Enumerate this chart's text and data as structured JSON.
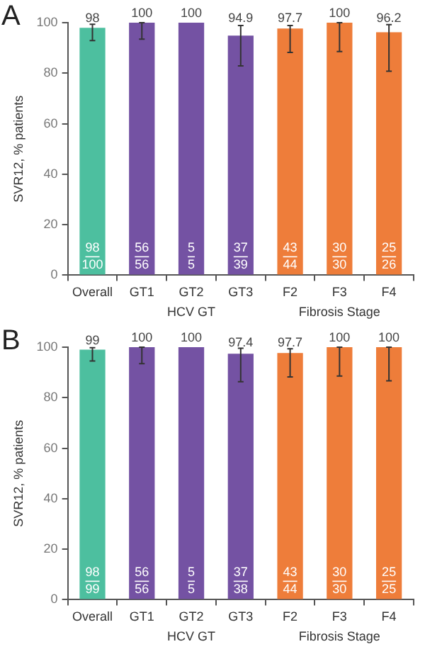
{
  "chart_data": [
    {
      "type": "bar",
      "title": "A",
      "ylabel": "SVR12, % patients",
      "categories": [
        "Overall",
        "GT1",
        "GT2",
        "GT3",
        "F2",
        "F3",
        "F4"
      ],
      "values": [
        98,
        100,
        100,
        94.9,
        97.7,
        100,
        96.2
      ],
      "colors": [
        "#4dbf9f",
        "#7452a3",
        "#7452a3",
        "#7452a3",
        "#ee7d3a",
        "#ee7d3a",
        "#ee7d3a"
      ],
      "errors": [
        [
          92.9,
          99.4
        ],
        [
          93.5,
          100
        ],
        null,
        [
          82.9,
          98.9
        ],
        [
          88.2,
          98.9
        ],
        [
          88.6,
          100
        ],
        [
          80.8,
          99.2
        ]
      ],
      "value_labels": [
        "98",
        "100",
        "100",
        "94.9",
        "97.7",
        "100",
        "96.2"
      ],
      "ylim": [
        0,
        100
      ],
      "yticks": [
        0,
        20,
        40,
        60,
        80,
        100
      ],
      "grid": false,
      "annotations": [
        "98",
        "100",
        "56",
        "56",
        "5",
        "5",
        "37",
        "39",
        "43",
        "44",
        "30",
        "30",
        "25",
        "26",
        "HCV GT",
        "Fibrosis Stage"
      ]
    },
    {
      "type": "bar",
      "title": "B",
      "ylabel": "SVR12, % patients",
      "categories": [
        "Overall",
        "GT1",
        "GT2",
        "GT3",
        "F2",
        "F3",
        "F4"
      ],
      "values": [
        99,
        100,
        100,
        97.4,
        97.7,
        100,
        100
      ],
      "colors": [
        "#4dbf9f",
        "#7452a3",
        "#7452a3",
        "#7452a3",
        "#ee7d3a",
        "#ee7d3a",
        "#ee7d3a"
      ],
      "errors": [
        [
          94.5,
          99.8
        ],
        [
          93.5,
          100
        ],
        null,
        [
          86.3,
          99.6
        ],
        [
          88.2,
          99.4
        ],
        [
          88.6,
          100
        ],
        [
          86.7,
          100
        ]
      ],
      "value_labels": [
        "99",
        "100",
        "100",
        "97.4",
        "97.7",
        "100",
        "100"
      ],
      "ylim": [
        0,
        100
      ],
      "yticks": [
        0,
        20,
        40,
        60,
        80,
        100
      ],
      "grid": false,
      "annotations": [
        "98",
        "99",
        "56",
        "56",
        "5",
        "5",
        "37",
        "38",
        "43",
        "44",
        "30",
        "30",
        "25",
        "25",
        "HCV GT",
        "Fibrosis Stage"
      ]
    }
  ]
}
